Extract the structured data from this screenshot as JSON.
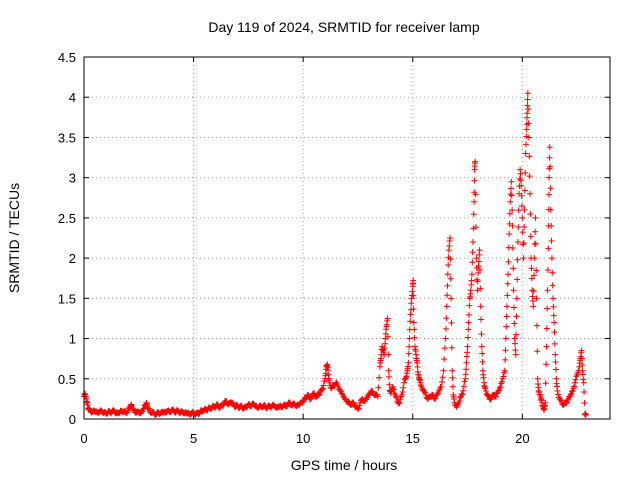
{
  "chart_data": {
    "type": "scatter",
    "title": "Day 119 of 2024, SRMTID for receiver lamp",
    "xlabel": "GPS time / hours",
    "ylabel": "SRMTID / TECUs",
    "xlim": [
      0,
      24
    ],
    "ylim": [
      0,
      4.5
    ],
    "x_ticks": [
      0,
      5,
      10,
      15,
      20
    ],
    "x_tick_labels": [
      "0",
      "5",
      "10",
      "15",
      "20"
    ],
    "y_ticks": [
      0,
      0.5,
      1,
      1.5,
      2,
      2.5,
      3,
      3.5,
      4,
      4.5
    ],
    "y_tick_labels": [
      "0",
      "0.5",
      "1",
      "1.5",
      "2",
      "2.5",
      "3",
      "3.5",
      "4",
      "4.5"
    ],
    "grid": true,
    "marker": "+",
    "series": [
      {
        "name": "SRMTID",
        "color": "#ff0000",
        "points": [
          [
            0.0,
            0.28
          ],
          [
            0.05,
            0.31
          ],
          [
            0.1,
            0.25
          ],
          [
            0.15,
            0.2
          ],
          [
            0.2,
            0.12
          ],
          [
            0.3,
            0.1
          ],
          [
            0.4,
            0.09
          ],
          [
            0.5,
            0.1
          ],
          [
            0.6,
            0.08
          ],
          [
            0.7,
            0.09
          ],
          [
            0.8,
            0.1
          ],
          [
            0.9,
            0.08
          ],
          [
            1.0,
            0.07
          ],
          [
            1.1,
            0.09
          ],
          [
            1.2,
            0.08
          ],
          [
            1.3,
            0.1
          ],
          [
            1.4,
            0.09
          ],
          [
            1.5,
            0.07
          ],
          [
            1.6,
            0.08
          ],
          [
            1.7,
            0.1
          ],
          [
            1.8,
            0.09
          ],
          [
            1.9,
            0.08
          ],
          [
            2.0,
            0.1
          ],
          [
            2.1,
            0.15
          ],
          [
            2.15,
            0.18
          ],
          [
            2.2,
            0.13
          ],
          [
            2.3,
            0.1
          ],
          [
            2.4,
            0.08
          ],
          [
            2.5,
            0.09
          ],
          [
            2.6,
            0.07
          ],
          [
            2.7,
            0.12
          ],
          [
            2.8,
            0.17
          ],
          [
            2.85,
            0.2
          ],
          [
            2.9,
            0.14
          ],
          [
            3.0,
            0.1
          ],
          [
            3.1,
            0.08
          ],
          [
            3.2,
            0.07
          ],
          [
            3.3,
            0.06
          ],
          [
            3.4,
            0.08
          ],
          [
            3.5,
            0.07
          ],
          [
            3.6,
            0.09
          ],
          [
            3.7,
            0.08
          ],
          [
            3.8,
            0.1
          ],
          [
            3.9,
            0.09
          ],
          [
            4.0,
            0.11
          ],
          [
            4.1,
            0.1
          ],
          [
            4.2,
            0.09
          ],
          [
            4.3,
            0.1
          ],
          [
            4.4,
            0.08
          ],
          [
            4.5,
            0.09
          ],
          [
            4.6,
            0.07
          ],
          [
            4.7,
            0.08
          ],
          [
            4.8,
            0.06
          ],
          [
            4.9,
            0.07
          ],
          [
            5.0,
            0.08
          ],
          [
            5.1,
            0.06
          ],
          [
            5.2,
            0.07
          ],
          [
            5.3,
            0.09
          ],
          [
            5.4,
            0.1
          ],
          [
            5.5,
            0.12
          ],
          [
            5.6,
            0.11
          ],
          [
            5.7,
            0.14
          ],
          [
            5.8,
            0.13
          ],
          [
            5.9,
            0.16
          ],
          [
            6.0,
            0.15
          ],
          [
            6.1,
            0.18
          ],
          [
            6.2,
            0.14
          ],
          [
            6.3,
            0.17
          ],
          [
            6.4,
            0.2
          ],
          [
            6.5,
            0.22
          ],
          [
            6.6,
            0.18
          ],
          [
            6.7,
            0.21
          ],
          [
            6.8,
            0.19
          ],
          [
            6.9,
            0.15
          ],
          [
            7.0,
            0.17
          ],
          [
            7.1,
            0.14
          ],
          [
            7.2,
            0.16
          ],
          [
            7.3,
            0.13
          ],
          [
            7.4,
            0.15
          ],
          [
            7.5,
            0.18
          ],
          [
            7.6,
            0.16
          ],
          [
            7.7,
            0.19
          ],
          [
            7.8,
            0.17
          ],
          [
            7.9,
            0.14
          ],
          [
            8.0,
            0.16
          ],
          [
            8.1,
            0.15
          ],
          [
            8.2,
            0.17
          ],
          [
            8.3,
            0.14
          ],
          [
            8.4,
            0.16
          ],
          [
            8.5,
            0.15
          ],
          [
            8.6,
            0.17
          ],
          [
            8.7,
            0.16
          ],
          [
            8.8,
            0.14
          ],
          [
            8.9,
            0.16
          ],
          [
            9.0,
            0.15
          ],
          [
            9.1,
            0.17
          ],
          [
            9.2,
            0.16
          ],
          [
            9.3,
            0.18
          ],
          [
            9.4,
            0.2
          ],
          [
            9.5,
            0.17
          ],
          [
            9.6,
            0.19
          ],
          [
            9.7,
            0.16
          ],
          [
            9.8,
            0.18
          ],
          [
            9.9,
            0.2
          ],
          [
            10.0,
            0.22
          ],
          [
            10.1,
            0.26
          ],
          [
            10.2,
            0.3
          ],
          [
            10.3,
            0.25
          ],
          [
            10.4,
            0.28
          ],
          [
            10.5,
            0.32
          ],
          [
            10.6,
            0.27
          ],
          [
            10.7,
            0.3
          ],
          [
            10.8,
            0.35
          ],
          [
            10.9,
            0.38
          ],
          [
            11.0,
            0.5
          ],
          [
            11.05,
            0.62
          ],
          [
            11.1,
            0.68
          ],
          [
            11.15,
            0.55
          ],
          [
            11.2,
            0.45
          ],
          [
            11.3,
            0.38
          ],
          [
            11.4,
            0.42
          ],
          [
            11.5,
            0.45
          ],
          [
            11.6,
            0.4
          ],
          [
            11.7,
            0.35
          ],
          [
            11.8,
            0.3
          ],
          [
            11.9,
            0.25
          ],
          [
            12.0,
            0.22
          ],
          [
            12.1,
            0.2
          ],
          [
            12.2,
            0.18
          ],
          [
            12.3,
            0.2
          ],
          [
            12.4,
            0.15
          ],
          [
            12.5,
            0.12
          ],
          [
            12.6,
            0.2
          ],
          [
            12.7,
            0.25
          ],
          [
            12.8,
            0.22
          ],
          [
            12.9,
            0.26
          ],
          [
            13.0,
            0.3
          ],
          [
            13.1,
            0.35
          ],
          [
            13.2,
            0.32
          ],
          [
            13.3,
            0.3
          ],
          [
            13.4,
            0.28
          ],
          [
            13.5,
            0.65
          ],
          [
            13.55,
            0.75
          ],
          [
            13.6,
            0.9
          ],
          [
            13.65,
            0.85
          ],
          [
            13.7,
            0.8
          ],
          [
            13.75,
            1.0
          ],
          [
            13.8,
            1.15
          ],
          [
            13.85,
            1.25
          ],
          [
            13.9,
            0.6
          ],
          [
            13.95,
            0.35
          ],
          [
            14.0,
            0.32
          ],
          [
            14.1,
            0.4
          ],
          [
            14.2,
            0.3
          ],
          [
            14.3,
            0.22
          ],
          [
            14.4,
            0.2
          ],
          [
            14.5,
            0.3
          ],
          [
            14.6,
            0.45
          ],
          [
            14.7,
            0.52
          ],
          [
            14.75,
            0.6
          ],
          [
            14.8,
            0.7
          ],
          [
            14.85,
            1.0
          ],
          [
            14.9,
            1.3
          ],
          [
            14.95,
            1.5
          ],
          [
            15.0,
            1.65
          ],
          [
            15.02,
            1.72
          ],
          [
            15.05,
            1.2
          ],
          [
            15.1,
            0.9
          ],
          [
            15.15,
            0.8
          ],
          [
            15.2,
            0.7
          ],
          [
            15.25,
            0.55
          ],
          [
            15.3,
            0.5
          ],
          [
            15.35,
            0.45
          ],
          [
            15.4,
            0.4
          ],
          [
            15.5,
            0.35
          ],
          [
            15.6,
            0.3
          ],
          [
            15.7,
            0.25
          ],
          [
            15.8,
            0.28
          ],
          [
            15.9,
            0.3
          ],
          [
            16.0,
            0.25
          ],
          [
            16.1,
            0.3
          ],
          [
            16.2,
            0.35
          ],
          [
            16.3,
            0.4
          ],
          [
            16.4,
            0.6
          ],
          [
            16.5,
            1.0
          ],
          [
            16.55,
            1.4
          ],
          [
            16.6,
            1.8
          ],
          [
            16.65,
            2.1
          ],
          [
            16.7,
            2.25
          ],
          [
            16.75,
            1.5
          ],
          [
            16.8,
            0.6
          ],
          [
            16.85,
            0.3
          ],
          [
            16.9,
            0.2
          ],
          [
            17.0,
            0.15
          ],
          [
            17.1,
            0.2
          ],
          [
            17.2,
            0.28
          ],
          [
            17.3,
            0.35
          ],
          [
            17.4,
            0.5
          ],
          [
            17.45,
            0.7
          ],
          [
            17.5,
            0.9
          ],
          [
            17.55,
            1.2
          ],
          [
            17.6,
            1.5
          ],
          [
            17.65,
            1.6
          ],
          [
            17.7,
            1.8
          ],
          [
            17.75,
            2.2
          ],
          [
            17.8,
            2.7
          ],
          [
            17.82,
            3.1
          ],
          [
            17.85,
            3.2
          ],
          [
            17.9,
            2.0
          ],
          [
            17.95,
            1.6
          ],
          [
            18.0,
            1.9
          ],
          [
            18.05,
            2.1
          ],
          [
            18.1,
            1.4
          ],
          [
            18.15,
            0.9
          ],
          [
            18.2,
            0.6
          ],
          [
            18.25,
            0.45
          ],
          [
            18.3,
            0.38
          ],
          [
            18.4,
            0.3
          ],
          [
            18.5,
            0.25
          ],
          [
            18.6,
            0.27
          ],
          [
            18.7,
            0.3
          ],
          [
            18.8,
            0.28
          ],
          [
            18.9,
            0.35
          ],
          [
            19.0,
            0.4
          ],
          [
            19.1,
            0.5
          ],
          [
            19.2,
            0.6
          ],
          [
            19.25,
            1.0
          ],
          [
            19.3,
            1.4
          ],
          [
            19.35,
            1.8
          ],
          [
            19.4,
            2.3
          ],
          [
            19.45,
            2.7
          ],
          [
            19.5,
            2.95
          ],
          [
            19.55,
            2.4
          ],
          [
            19.6,
            1.6
          ],
          [
            19.65,
            1.0
          ],
          [
            19.7,
            0.8
          ],
          [
            19.75,
            1.5
          ],
          [
            19.8,
            2.2
          ],
          [
            19.85,
            2.8
          ],
          [
            19.9,
            3.1
          ],
          [
            19.95,
            2.9
          ],
          [
            20.0,
            2.5
          ],
          [
            20.05,
            2.0
          ],
          [
            20.1,
            2.6
          ],
          [
            20.15,
            3.3
          ],
          [
            20.2,
            3.6
          ],
          [
            20.22,
            3.8
          ],
          [
            20.25,
            4.05
          ],
          [
            20.3,
            3.5
          ],
          [
            20.35,
            2.8
          ],
          [
            20.4,
            2.0
          ],
          [
            20.45,
            1.6
          ],
          [
            20.5,
            1.4
          ],
          [
            20.55,
            2.0
          ],
          [
            20.6,
            2.5
          ],
          [
            20.65,
            1.5
          ],
          [
            20.7,
            0.5
          ],
          [
            20.75,
            0.35
          ],
          [
            20.8,
            0.3
          ],
          [
            20.85,
            0.25
          ],
          [
            20.9,
            0.2
          ],
          [
            20.95,
            0.15
          ],
          [
            21.0,
            0.12
          ],
          [
            21.05,
            0.2
          ],
          [
            21.1,
            0.9
          ],
          [
            21.15,
            1.6
          ],
          [
            21.2,
            2.4
          ],
          [
            21.22,
            3.0
          ],
          [
            21.25,
            3.38
          ],
          [
            21.3,
            2.6
          ],
          [
            21.35,
            2.0
          ],
          [
            21.4,
            1.5
          ],
          [
            21.45,
            1.2
          ],
          [
            21.5,
            0.8
          ],
          [
            21.55,
            0.5
          ],
          [
            21.6,
            0.35
          ],
          [
            21.7,
            0.25
          ],
          [
            21.8,
            0.2
          ],
          [
            21.9,
            0.18
          ],
          [
            22.0,
            0.2
          ],
          [
            22.1,
            0.25
          ],
          [
            22.2,
            0.3
          ],
          [
            22.3,
            0.35
          ],
          [
            22.4,
            0.45
          ],
          [
            22.5,
            0.55
          ],
          [
            22.6,
            0.65
          ],
          [
            22.65,
            0.75
          ],
          [
            22.7,
            0.85
          ],
          [
            22.75,
            0.6
          ],
          [
            22.8,
            0.45
          ],
          [
            22.85,
            0.06
          ],
          [
            22.9,
            0.05
          ]
        ]
      }
    ]
  }
}
